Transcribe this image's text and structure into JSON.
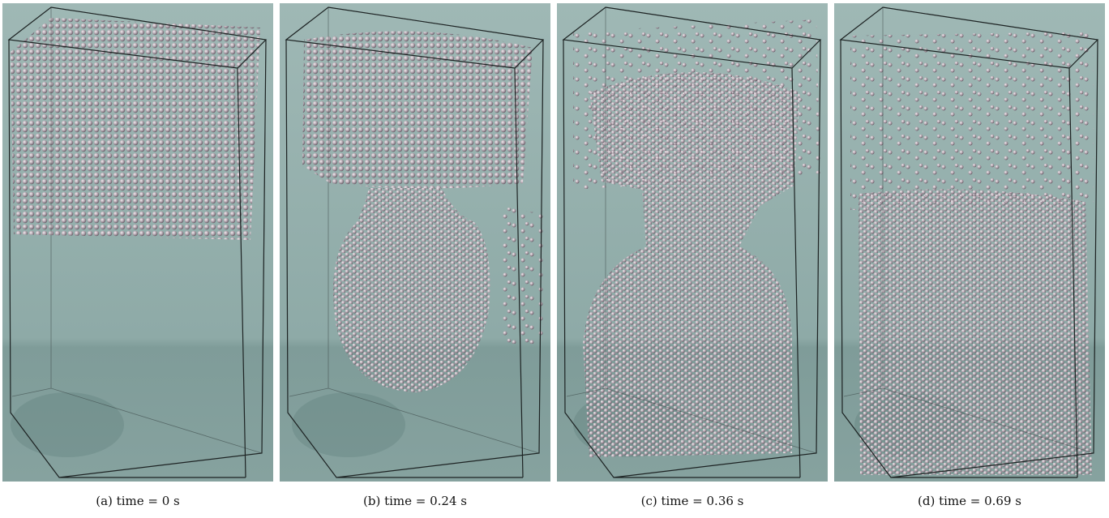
{
  "figure": {
    "panels": [
      {
        "caption": "(a) time = 0 s"
      },
      {
        "caption": "(b) time = 0.24 s"
      },
      {
        "caption": "(c) time = 0.36 s"
      },
      {
        "caption": "(d) time = 0.69 s"
      }
    ]
  }
}
